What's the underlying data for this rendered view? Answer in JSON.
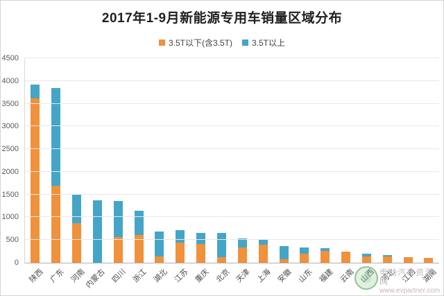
{
  "header": {
    "title": "2017年1-9月新能源专用车销量区域分布"
  },
  "watermark": {
    "site_name": "电动汽车资源网",
    "site_url": "www.evpartner.com"
  },
  "colors": {
    "series_below": "#F0913C",
    "series_above": "#44A5C7",
    "gridline": "#e8e8e8",
    "axis_text": "#595959"
  },
  "chart_data": {
    "type": "bar",
    "stacked": true,
    "title": "2017年1-9月新能源专用车销量区域分布",
    "xlabel": "",
    "ylabel": "",
    "ylim": [
      0,
      4500
    ],
    "ytick_interval": 500,
    "grid": true,
    "legend_position": "top",
    "categories": [
      "陕西",
      "广东",
      "河南",
      "内蒙古",
      "四川",
      "浙江",
      "湖北",
      "江苏",
      "重庆",
      "北京",
      "天津",
      "上海",
      "安徽",
      "山东",
      "福建",
      "云南",
      "山西",
      "河北",
      "江西",
      "湖南"
    ],
    "series": [
      {
        "name": "3.5T以下(含3.5T)",
        "color": "#F0913C",
        "values": [
          3620,
          1700,
          870,
          0,
          560,
          610,
          135,
          440,
          415,
          120,
          340,
          400,
          70,
          200,
          255,
          245,
          145,
          130,
          120,
          110
        ]
      },
      {
        "name": "3.5T以上",
        "color": "#44A5C7",
        "values": [
          300,
          2150,
          630,
          1370,
          805,
          540,
          555,
          270,
          245,
          530,
          200,
          110,
          295,
          140,
          60,
          0,
          60,
          35,
          0,
          0
        ]
      }
    ]
  }
}
